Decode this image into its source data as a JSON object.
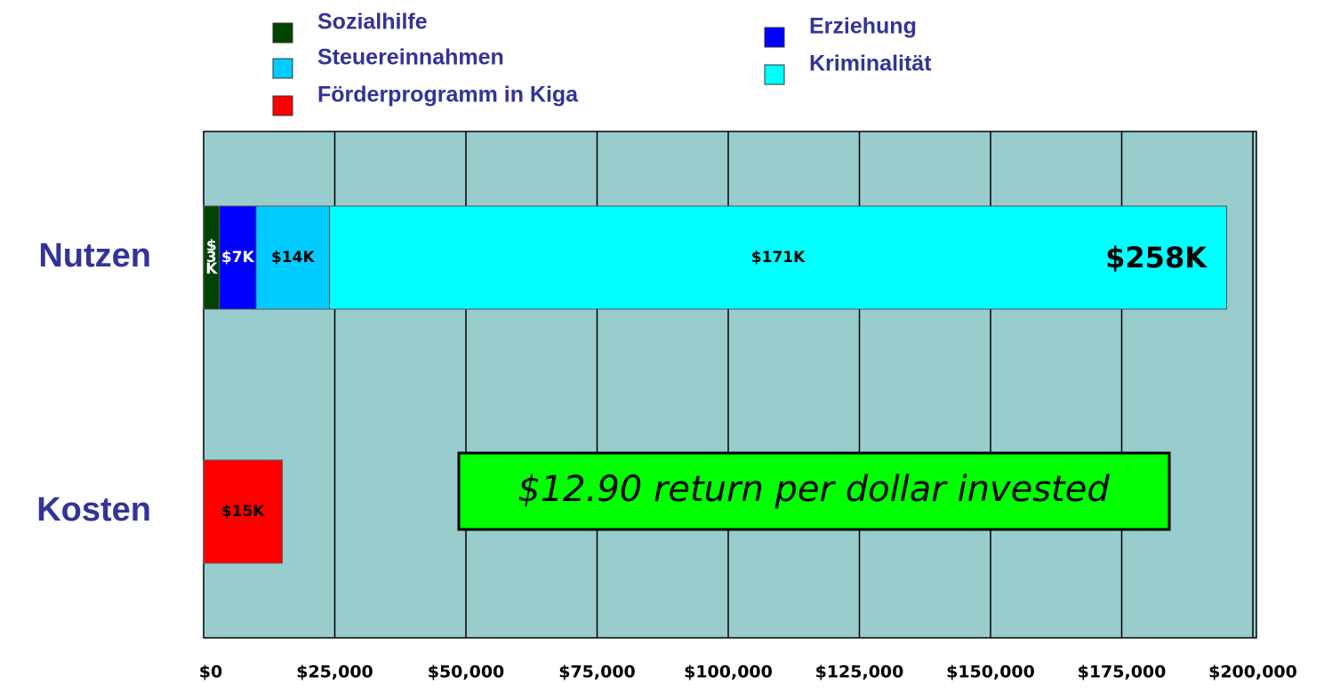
{
  "chart_data": {
    "type": "stacked_barh",
    "categories": [
      "Nutzen",
      "Kosten"
    ],
    "series": [
      {
        "name": "Sozialhilfe",
        "color": "#004400",
        "values": [
          3000,
          null
        ],
        "value_labels": [
          "$3K",
          null
        ]
      },
      {
        "name": "Erziehung",
        "color": "#0000ff",
        "values": [
          7000,
          null
        ],
        "value_labels": [
          "$7K",
          null
        ]
      },
      {
        "name": "Steuereinnahmen",
        "color": "#00ccff",
        "values": [
          14000,
          null
        ],
        "value_labels": [
          "$14K",
          null
        ]
      },
      {
        "name": "Kriminalität",
        "color": "#00ffff",
        "values": [
          171000,
          null
        ],
        "value_labels": [
          "$171K",
          null
        ]
      },
      {
        "name": "Förderprogramm in Kiga",
        "color": "#ff0000",
        "values": [
          null,
          15000
        ],
        "value_labels": [
          null,
          "$15K"
        ]
      }
    ],
    "xlim": [
      0,
      200000
    ],
    "xticks": [
      {
        "value": 0,
        "label": "$0"
      },
      {
        "value": 25000,
        "label": "$25,000"
      },
      {
        "value": 50000,
        "label": "$50,000"
      },
      {
        "value": 75000,
        "label": "$75,000"
      },
      {
        "value": 100000,
        "label": "$100,000"
      },
      {
        "value": 125000,
        "label": "$125,000"
      },
      {
        "value": 150000,
        "label": "$150,000"
      },
      {
        "value": 175000,
        "label": "$175,000"
      },
      {
        "value": 200000,
        "label": "$200,000"
      }
    ],
    "grid": true,
    "annotations": [
      "$258K",
      "$12.90 return per dollar invested"
    ]
  }
}
